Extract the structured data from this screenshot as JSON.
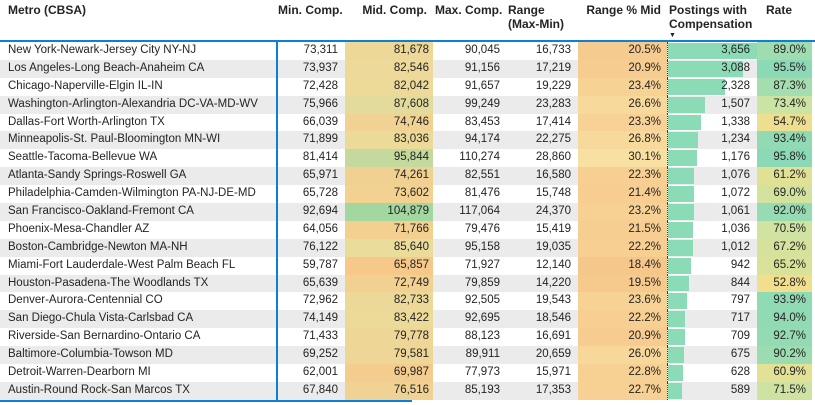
{
  "table": {
    "header": {
      "metro": "Metro (CBSA)",
      "min": "Min. Comp.",
      "mid": "Mid. Comp.",
      "max": "Max. Comp.",
      "range_line1": "Range",
      "range_line2": "(Max-Min)",
      "range_pct": "Range % Mid",
      "postings_line1": "Postings with",
      "postings_line2": "Compensation",
      "rate": "Rate"
    },
    "sort": {
      "column": "Postings with Compensation",
      "direction": "descending",
      "indicator": "▼"
    }
  },
  "colors": {
    "accent_blue": "#0E7FD9",
    "alt_row": "#EBEBEB",
    "text": "#252423",
    "bar_green": "#8BDBB7",
    "dotted_axis": "#3B3A39"
  },
  "conditional_formatting": {
    "mid_comp_scale": {
      "domain": [
        65857,
        104879
      ],
      "colors": [
        "#F6C98B",
        "#EBDC9B",
        "#A3D7A0"
      ]
    },
    "range_pct_scale": {
      "domain": [
        18.4,
        30.1
      ],
      "colors": [
        "#F6C78B",
        "#F8E0A2"
      ]
    },
    "rate_scale": {
      "domain": [
        52.8,
        95.8
      ],
      "colors": [
        "#F1DF8D",
        "#C9E4A4",
        "#8BD9B6"
      ]
    },
    "postings_bar": {
      "max": 3656,
      "color": "#8BDBB7"
    }
  },
  "chart_data": {
    "type": "table",
    "title": "",
    "columns": [
      "Metro (CBSA)",
      "Min. Comp.",
      "Mid. Comp.",
      "Max. Comp.",
      "Range (Max-Min)",
      "Range % Mid",
      "Postings with Compensation",
      "Rate"
    ],
    "rows": [
      [
        "New York-Newark-Jersey City NY-NJ",
        73311,
        81678,
        90045,
        16733,
        20.5,
        3656,
        89.0
      ],
      [
        "Los Angeles-Long Beach-Anaheim CA",
        73937,
        82546,
        91156,
        17219,
        20.9,
        3088,
        95.5
      ],
      [
        "Chicago-Naperville-Elgin IL-IN",
        72428,
        82042,
        91657,
        19229,
        23.4,
        2328,
        87.3
      ],
      [
        "Washington-Arlington-Alexandria DC-VA-MD-WV",
        75966,
        87608,
        99249,
        23283,
        26.6,
        1507,
        73.4
      ],
      [
        "Dallas-Fort Worth-Arlington TX",
        66039,
        74746,
        83453,
        17414,
        23.3,
        1338,
        54.7
      ],
      [
        "Minneapolis-St. Paul-Bloomington MN-WI",
        71899,
        83036,
        94174,
        22275,
        26.8,
        1234,
        93.4
      ],
      [
        "Seattle-Tacoma-Bellevue WA",
        81414,
        95844,
        110274,
        28860,
        30.1,
        1176,
        95.8
      ],
      [
        "Atlanta-Sandy Springs-Roswell GA",
        65971,
        74261,
        82551,
        16580,
        22.3,
        1076,
        61.2
      ],
      [
        "Philadelphia-Camden-Wilmington PA-NJ-DE-MD",
        65728,
        73602,
        81476,
        15748,
        21.4,
        1072,
        69.0
      ],
      [
        "San Francisco-Oakland-Fremont CA",
        92694,
        104879,
        117064,
        24370,
        23.2,
        1061,
        92.0
      ],
      [
        "Phoenix-Mesa-Chandler AZ",
        64056,
        71766,
        79476,
        15419,
        21.5,
        1036,
        70.5
      ],
      [
        "Boston-Cambridge-Newton MA-NH",
        76122,
        85640,
        95158,
        19035,
        22.2,
        1012,
        67.2
      ],
      [
        "Miami-Fort Lauderdale-West Palm Beach FL",
        59787,
        65857,
        71927,
        12140,
        18.4,
        942,
        65.2
      ],
      [
        "Houston-Pasadena-The Woodlands TX",
        65639,
        72749,
        79859,
        14220,
        19.5,
        844,
        52.8
      ],
      [
        "Denver-Aurora-Centennial CO",
        72962,
        82733,
        92505,
        19543,
        23.6,
        797,
        93.9
      ],
      [
        "San Diego-Chula Vista-Carlsbad CA",
        74149,
        83422,
        92695,
        18546,
        22.2,
        717,
        94.0
      ],
      [
        "Riverside-San Bernardino-Ontario CA",
        71433,
        79778,
        88123,
        16691,
        20.9,
        709,
        92.7
      ],
      [
        "Baltimore-Columbia-Towson MD",
        69252,
        79581,
        89911,
        20659,
        26.0,
        675,
        90.2
      ],
      [
        "Detroit-Warren-Dearborn MI",
        62001,
        69987,
        77973,
        15971,
        22.8,
        628,
        60.9
      ],
      [
        "Austin-Round Rock-San Marcos TX",
        67840,
        76516,
        85193,
        17353,
        22.7,
        589,
        71.5
      ]
    ]
  }
}
